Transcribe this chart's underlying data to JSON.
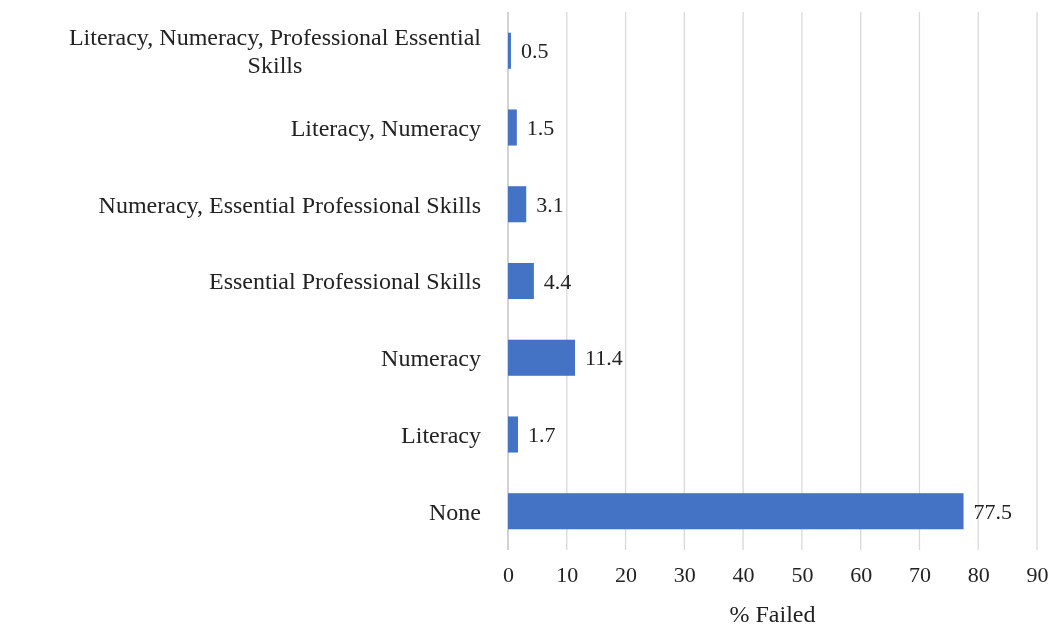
{
  "chart_data": {
    "type": "bar",
    "orientation": "horizontal",
    "xlabel": "% Failed",
    "categories": [
      "Literacy, Numeracy, Professional Essential Skills",
      "Literacy, Numeracy",
      "Numeracy, Essential Professional Skills",
      "Essential Professional Skills",
      "Numeracy",
      "Literacy",
      "None"
    ],
    "values": [
      0.5,
      1.5,
      3.1,
      4.4,
      11.4,
      1.7,
      77.5
    ],
    "color": "#4472c4",
    "xlim": [
      0,
      90
    ],
    "xticks": [
      0,
      10,
      20,
      30,
      40,
      50,
      60,
      70,
      80,
      90
    ],
    "grid": "x",
    "data_labels": true
  }
}
